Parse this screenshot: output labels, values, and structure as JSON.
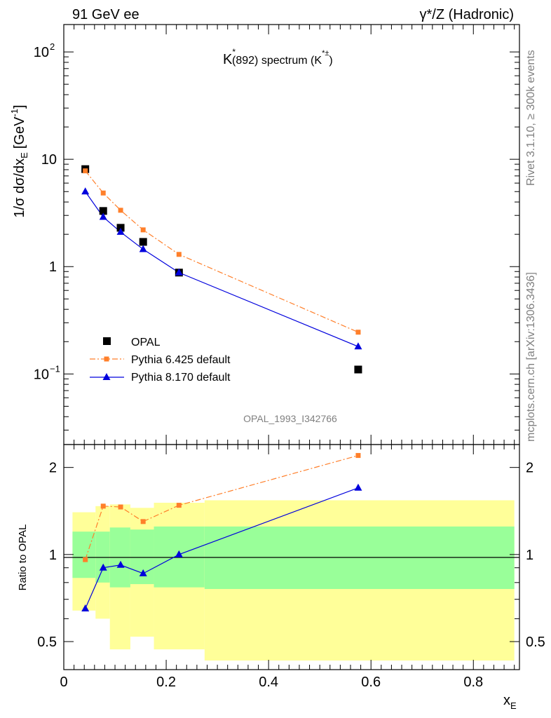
{
  "header": {
    "left": "91 GeV ee",
    "right": "γ*/Z (Hadronic)"
  },
  "side_labels": {
    "rivet": "Rivet 3.1.10, ≥ 300k events",
    "mcplots": "mcplots.cern.ch [arXiv:1306.3436]"
  },
  "analysis_id": "OPAL_1993_I342766",
  "plot_title": {
    "main": "K",
    "sup": "*",
    "rest": "(892) spectrum (K",
    "rest_sup": "*±",
    "close": ")"
  },
  "y_axis_label": {
    "pre": "1/σ dσ/dx",
    "sub": "E",
    "post": "[GeV",
    "sup": "-1",
    "end": "]"
  },
  "ratio_ylabel": "Ratio to OPAL",
  "x_axis_label": {
    "main": "x",
    "sub": "E"
  },
  "top_ticks": [
    {
      "v": 100,
      "base": "10",
      "exp": "2"
    },
    {
      "v": 10,
      "base": "10",
      "exp": ""
    },
    {
      "v": 1,
      "base": "1",
      "exp": ""
    },
    {
      "v": 0.1,
      "base": "10",
      "exp": "−1"
    }
  ],
  "ratio_ticks": [
    "0.5",
    "1",
    "2"
  ],
  "x_ticks": [
    "0",
    "0.2",
    "0.4",
    "0.6",
    "0.8"
  ],
  "colors": {
    "data": "#000000",
    "pythia6": "#ff7f2a",
    "pythia8": "#0000dd",
    "band_inner": "#99ff99",
    "band_outer": "#ffff99"
  },
  "chart_data": {
    "type": "scatter",
    "xlabel": "x_E",
    "ylabel": "1/σ dσ/dx_E [GeV^-1]",
    "xlim": [
      0,
      0.89
    ],
    "ylim": [
      0.022,
      180
    ],
    "yscale": "log",
    "ratio_ylim": [
      0.4,
      2.4
    ],
    "ratio_scale": "log",
    "legend_position": "bottom-left",
    "series": [
      {
        "name": "OPAL",
        "marker": "square",
        "x": [
          0.042,
          0.077,
          0.111,
          0.155,
          0.225,
          0.575
        ],
        "y": [
          8.1,
          3.3,
          2.3,
          1.7,
          0.88,
          0.11
        ]
      },
      {
        "name": "Pythia 6.425 default",
        "marker": "small-square",
        "line": "dash-dot",
        "x": [
          0.042,
          0.077,
          0.111,
          0.155,
          0.225,
          0.575
        ],
        "y": [
          7.8,
          4.85,
          3.35,
          2.2,
          1.3,
          0.245
        ]
      },
      {
        "name": "Pythia 8.170 default",
        "marker": "triangle",
        "line": "solid",
        "x": [
          0.042,
          0.077,
          0.111,
          0.155,
          0.225,
          0.575
        ],
        "y": [
          5.0,
          2.9,
          2.1,
          1.45,
          0.88,
          0.18
        ]
      }
    ],
    "ratio_series": [
      {
        "name": "Pythia 6.425 default",
        "values": [
          0.96,
          1.47,
          1.46,
          1.3,
          1.48,
          2.2
        ]
      },
      {
        "name": "Pythia 8.170 default",
        "values": [
          0.65,
          0.9,
          0.92,
          0.86,
          1.0,
          1.7
        ]
      }
    ],
    "ratio_bands": [
      {
        "x0": 0.017,
        "x1": 0.062,
        "in_lo": 0.83,
        "in_hi": 1.2,
        "out_lo": 0.64,
        "out_hi": 1.4
      },
      {
        "x0": 0.062,
        "x1": 0.09,
        "in_lo": 0.8,
        "in_hi": 1.2,
        "out_lo": 0.6,
        "out_hi": 1.47
      },
      {
        "x0": 0.09,
        "x1": 0.13,
        "in_lo": 0.77,
        "in_hi": 1.24,
        "out_lo": 0.47,
        "out_hi": 1.49
      },
      {
        "x0": 0.13,
        "x1": 0.176,
        "in_lo": 0.79,
        "in_hi": 1.22,
        "out_lo": 0.52,
        "out_hi": 1.45
      },
      {
        "x0": 0.176,
        "x1": 0.275,
        "in_lo": 0.77,
        "in_hi": 1.25,
        "out_lo": 0.47,
        "out_hi": 1.51
      },
      {
        "x0": 0.275,
        "x1": 0.88,
        "in_lo": 0.76,
        "in_hi": 1.25,
        "out_lo": 0.43,
        "out_hi": 1.54
      }
    ]
  }
}
